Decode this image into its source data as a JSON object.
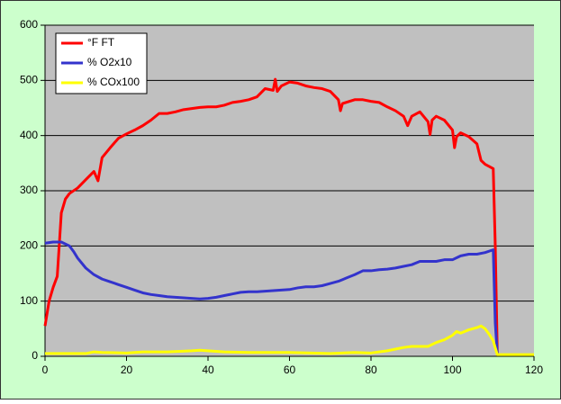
{
  "chart_data": {
    "type": "line",
    "xlim": [
      0,
      120
    ],
    "xticks": [
      0,
      20,
      40,
      60,
      80,
      100,
      120
    ],
    "ylim": [
      0,
      600
    ],
    "yticks": [
      0,
      100,
      200,
      300,
      400,
      500,
      600
    ],
    "grid": true,
    "legend": "top-left",
    "series": [
      {
        "name": "°F FT",
        "color": "#ff0000",
        "x": [
          0,
          1,
          2,
          3,
          4,
          5,
          6,
          8,
          10,
          12,
          13,
          14,
          16,
          18,
          20,
          22,
          24,
          26,
          28,
          30,
          32,
          34,
          36,
          38,
          40,
          42,
          44,
          46,
          48,
          50,
          52,
          54,
          56,
          56.5,
          57,
          58,
          60,
          62,
          64,
          66,
          68,
          70,
          72,
          72.5,
          73,
          76,
          78,
          80,
          82,
          84,
          86,
          88,
          89,
          90,
          92,
          94,
          94.5,
          95,
          96,
          98,
          100,
          100.5,
          101,
          102,
          104,
          106,
          107,
          108,
          110,
          110.5,
          111
        ],
        "values": [
          55,
          100,
          125,
          145,
          260,
          285,
          295,
          305,
          320,
          335,
          318,
          360,
          378,
          395,
          403,
          410,
          418,
          428,
          440,
          440,
          443,
          447,
          449,
          451,
          452,
          452,
          455,
          460,
          462,
          465,
          470,
          485,
          482,
          502,
          480,
          490,
          497,
          495,
          490,
          487,
          485,
          480,
          465,
          445,
          458,
          465,
          465,
          462,
          460,
          452,
          445,
          435,
          418,
          435,
          443,
          425,
          402,
          428,
          435,
          428,
          410,
          378,
          398,
          405,
          398,
          385,
          355,
          348,
          340,
          200,
          5
        ]
      },
      {
        "name": "% O2x10",
        "color": "#3333cc",
        "x": [
          0,
          2,
          4,
          6,
          7,
          8,
          10,
          12,
          14,
          16,
          18,
          20,
          22,
          24,
          26,
          28,
          30,
          32,
          34,
          36,
          38,
          40,
          42,
          44,
          46,
          48,
          50,
          52,
          54,
          56,
          58,
          60,
          62,
          64,
          66,
          68,
          70,
          72,
          74,
          76,
          78,
          80,
          82,
          84,
          86,
          88,
          90,
          92,
          94,
          96,
          98,
          100,
          102,
          104,
          106,
          108,
          110,
          110.5,
          111
        ],
        "values": [
          205,
          207,
          207,
          200,
          190,
          178,
          160,
          148,
          140,
          135,
          130,
          125,
          120,
          115,
          112,
          110,
          108,
          107,
          106,
          105,
          104,
          105,
          107,
          110,
          113,
          116,
          117,
          117,
          118,
          119,
          120,
          121,
          124,
          126,
          126,
          128,
          132,
          136,
          142,
          148,
          155,
          155,
          157,
          158,
          160,
          163,
          166,
          172,
          172,
          172,
          175,
          175,
          182,
          185,
          185,
          188,
          193,
          60,
          5
        ]
      },
      {
        "name": "% COx100",
        "color": "#ffff00",
        "x": [
          0,
          10,
          12,
          14,
          20,
          24,
          30,
          36,
          38,
          40,
          44,
          50,
          60,
          70,
          76,
          80,
          84,
          86,
          88,
          90,
          94,
          96,
          98,
          100,
          101,
          102,
          104,
          106,
          107,
          108,
          109,
          110,
          111,
          120
        ],
        "values": [
          5,
          5,
          8,
          7,
          6,
          8,
          8,
          10,
          11,
          10,
          8,
          7,
          7,
          5,
          7,
          6,
          10,
          13,
          16,
          18,
          18,
          25,
          30,
          38,
          45,
          42,
          48,
          52,
          55,
          50,
          40,
          28,
          3,
          3
        ]
      }
    ]
  }
}
